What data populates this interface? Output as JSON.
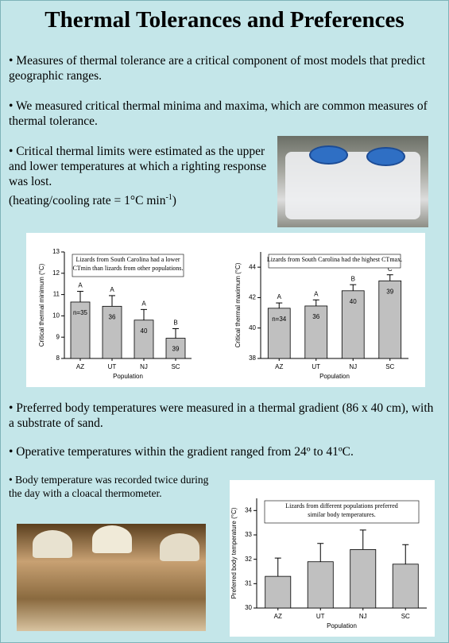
{
  "title": "Thermal Tolerances and Preferences",
  "bullets": [
    "• Measures of thermal tolerance are a critical component of most models that predict geographic ranges.",
    "• We measured critical thermal minima and maxima, which are common measures of thermal tolerance.",
    "• Critical thermal limits were estimated as the upper and lower temperatures at which a righting response was lost.",
    "• Preferred body temperatures were measured in a thermal gradient (86 x 40 cm), with a substrate of sand.",
    "• Operative temperatures within the gradient ranged from 24º to 41ºC.",
    "• Body temperature was recorded twice during the day with a cloacal thermometer."
  ],
  "rate_note": {
    "text": "(heating/cooling rate = 1°C min",
    "sup": "-1",
    "end": ")"
  },
  "chart_data": [
    {
      "type": "bar",
      "annotation": [
        "Lizards from South Carolina had a lower",
        "CTmin than lizards from other populations."
      ],
      "x_label": "Population",
      "y_label": "Critical thermal minimum (°C)",
      "categories": [
        "AZ",
        "UT",
        "NJ",
        "SC"
      ],
      "values": [
        10.65,
        10.45,
        9.8,
        8.95
      ],
      "errors": [
        0.5,
        0.5,
        0.5,
        0.45
      ],
      "letters": [
        "A",
        "A",
        "A",
        "B"
      ],
      "n": [
        "n=35",
        "36",
        "40",
        "39"
      ],
      "color": "#c0c0c0",
      "ylim": [
        8,
        13
      ],
      "yticks": [
        8,
        9,
        10,
        11,
        12,
        13
      ]
    },
    {
      "type": "bar",
      "annotation": [
        "Lizards from South Carolina had the highest CTmax."
      ],
      "x_label": "Population",
      "y_label": "Critical thermal maximum (°C)",
      "categories": [
        "AZ",
        "UT",
        "NJ",
        "SC"
      ],
      "values": [
        41.3,
        41.45,
        42.45,
        43.1
      ],
      "errors": [
        0.35,
        0.4,
        0.4,
        0.4
      ],
      "letters": [
        "A",
        "A",
        "B",
        "C"
      ],
      "n": [
        "n=34",
        "36",
        "40",
        "39"
      ],
      "color": "#c0c0c0",
      "ylim": [
        38,
        45
      ],
      "yticks": [
        38,
        40,
        42,
        44
      ]
    },
    {
      "type": "bar",
      "annotation": [
        "Lizards from different populations preferred",
        "similar body temperatures."
      ],
      "x_label": "Population",
      "y_label": "Preferred body temperature (°C)",
      "categories": [
        "AZ",
        "UT",
        "NJ",
        "SC"
      ],
      "values": [
        31.3,
        31.9,
        32.4,
        31.8
      ],
      "errors": [
        0.75,
        0.75,
        0.8,
        0.8
      ],
      "color": "#c0c0c0",
      "ylim": [
        30,
        34.5
      ],
      "yticks": [
        30,
        31,
        32,
        33,
        34
      ]
    }
  ]
}
